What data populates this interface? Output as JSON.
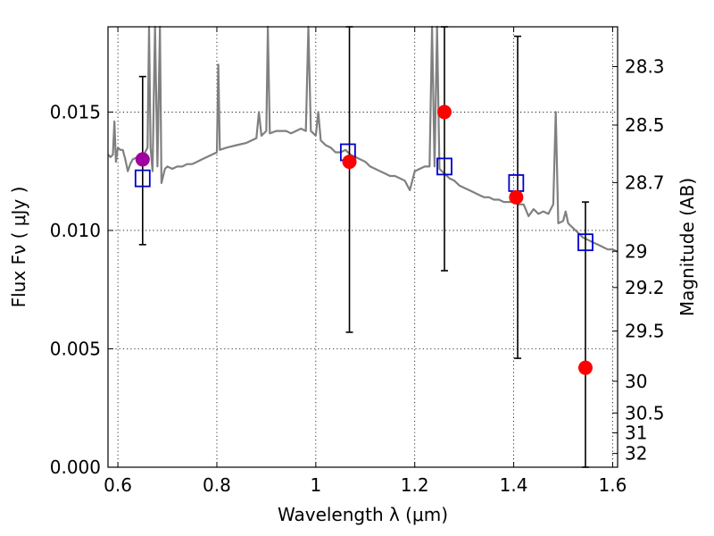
{
  "chart_data": {
    "type": "scatter",
    "title": "",
    "xlabel": "Wavelength  λ (μm)",
    "ylabel": "Flux  Fν  ( μJy )",
    "y2label": "Magnitude (AB)",
    "xlim": [
      0.58,
      1.61
    ],
    "ylim": [
      0.0,
      0.0186
    ],
    "grid": true,
    "x_ticks": [
      {
        "value": 0.6,
        "label": "0.6"
      },
      {
        "value": 0.8,
        "label": "0.8"
      },
      {
        "value": 1.0,
        "label": "1"
      },
      {
        "value": 1.2,
        "label": "1.2"
      },
      {
        "value": 1.4,
        "label": "1.4"
      },
      {
        "value": 1.6,
        "label": "1.6"
      }
    ],
    "y_ticks": [
      {
        "value": 0.0,
        "label": "0.000"
      },
      {
        "value": 0.005,
        "label": "0.005"
      },
      {
        "value": 0.01,
        "label": "0.010"
      },
      {
        "value": 0.015,
        "label": "0.015"
      }
    ],
    "y2_ticks": [
      {
        "label": "28.3",
        "flux": 0.01692
      },
      {
        "label": "28.5",
        "flux": 0.01445
      },
      {
        "label": "28.7",
        "flux": 0.01202
      },
      {
        "label": "29",
        "flux": 0.00912
      },
      {
        "label": "29.2",
        "flux": 0.00759
      },
      {
        "label": "29.5",
        "flux": 0.00575
      },
      {
        "label": "30",
        "flux": 0.00363
      },
      {
        "label": "30.5",
        "flux": 0.00229
      },
      {
        "label": "31",
        "flux": 0.00145
      },
      {
        "label": "32",
        "flux": 0.00058
      }
    ],
    "series": [
      {
        "marker": "spectrum-line",
        "color": "#808080",
        "points": [
          [
            0.58,
            0.0132
          ],
          [
            0.585,
            0.0131
          ],
          [
            0.59,
            0.0132
          ],
          [
            0.593,
            0.0146
          ],
          [
            0.596,
            0.0129
          ],
          [
            0.6,
            0.0135
          ],
          [
            0.605,
            0.0134
          ],
          [
            0.61,
            0.0134
          ],
          [
            0.615,
            0.013
          ],
          [
            0.62,
            0.0125
          ],
          [
            0.625,
            0.0128
          ],
          [
            0.63,
            0.013
          ],
          [
            0.64,
            0.0131
          ],
          [
            0.65,
            0.0131
          ],
          [
            0.66,
            0.0135
          ],
          [
            0.663,
            0.0186
          ],
          [
            0.666,
            0.0135
          ],
          [
            0.67,
            0.0125
          ],
          [
            0.675,
            0.0186
          ],
          [
            0.68,
            0.0127
          ],
          [
            0.685,
            0.0186
          ],
          [
            0.688,
            0.012
          ],
          [
            0.695,
            0.0126
          ],
          [
            0.7,
            0.0127
          ],
          [
            0.71,
            0.0126
          ],
          [
            0.72,
            0.0127
          ],
          [
            0.73,
            0.0127
          ],
          [
            0.74,
            0.0128
          ],
          [
            0.75,
            0.0128
          ],
          [
            0.76,
            0.0129
          ],
          [
            0.77,
            0.013
          ],
          [
            0.78,
            0.0131
          ],
          [
            0.79,
            0.0132
          ],
          [
            0.8,
            0.0133
          ],
          [
            0.803,
            0.017
          ],
          [
            0.806,
            0.0134
          ],
          [
            0.82,
            0.0135
          ],
          [
            0.84,
            0.0136
          ],
          [
            0.86,
            0.0137
          ],
          [
            0.87,
            0.0138
          ],
          [
            0.88,
            0.0139
          ],
          [
            0.885,
            0.015
          ],
          [
            0.89,
            0.014
          ],
          [
            0.9,
            0.0142
          ],
          [
            0.903,
            0.0186
          ],
          [
            0.907,
            0.0141
          ],
          [
            0.92,
            0.0142
          ],
          [
            0.94,
            0.0142
          ],
          [
            0.95,
            0.0141
          ],
          [
            0.96,
            0.0142
          ],
          [
            0.97,
            0.0143
          ],
          [
            0.98,
            0.0142
          ],
          [
            0.985,
            0.0186
          ],
          [
            0.99,
            0.0142
          ],
          [
            1.0,
            0.014
          ],
          [
            1.005,
            0.015
          ],
          [
            1.01,
            0.0138
          ],
          [
            1.02,
            0.0136
          ],
          [
            1.03,
            0.0135
          ],
          [
            1.04,
            0.0133
          ],
          [
            1.05,
            0.0133
          ],
          [
            1.06,
            0.0134
          ],
          [
            1.07,
            0.0132
          ],
          [
            1.08,
            0.0131
          ],
          [
            1.09,
            0.013
          ],
          [
            1.1,
            0.0129
          ],
          [
            1.11,
            0.0127
          ],
          [
            1.12,
            0.0126
          ],
          [
            1.13,
            0.0125
          ],
          [
            1.14,
            0.0124
          ],
          [
            1.15,
            0.0123
          ],
          [
            1.16,
            0.0123
          ],
          [
            1.17,
            0.0122
          ],
          [
            1.18,
            0.0121
          ],
          [
            1.19,
            0.0117
          ],
          [
            1.2,
            0.0125
          ],
          [
            1.21,
            0.0126
          ],
          [
            1.22,
            0.0127
          ],
          [
            1.23,
            0.0127
          ],
          [
            1.235,
            0.0186
          ],
          [
            1.24,
            0.0127
          ],
          [
            1.245,
            0.0186
          ],
          [
            1.25,
            0.0126
          ],
          [
            1.26,
            0.0124
          ],
          [
            1.27,
            0.0122
          ],
          [
            1.28,
            0.0121
          ],
          [
            1.29,
            0.0119
          ],
          [
            1.3,
            0.0118
          ],
          [
            1.31,
            0.0117
          ],
          [
            1.32,
            0.0116
          ],
          [
            1.33,
            0.0115
          ],
          [
            1.34,
            0.0114
          ],
          [
            1.35,
            0.0114
          ],
          [
            1.36,
            0.0113
          ],
          [
            1.37,
            0.0113
          ],
          [
            1.38,
            0.0112
          ],
          [
            1.39,
            0.0112
          ],
          [
            1.4,
            0.0112
          ],
          [
            1.41,
            0.0111
          ],
          [
            1.42,
            0.0111
          ],
          [
            1.43,
            0.0106
          ],
          [
            1.44,
            0.0109
          ],
          [
            1.45,
            0.0107
          ],
          [
            1.46,
            0.0108
          ],
          [
            1.47,
            0.0107
          ],
          [
            1.48,
            0.0111
          ],
          [
            1.485,
            0.015
          ],
          [
            1.49,
            0.0103
          ],
          [
            1.5,
            0.0104
          ],
          [
            1.505,
            0.0108
          ],
          [
            1.51,
            0.0103
          ],
          [
            1.52,
            0.0101
          ],
          [
            1.53,
            0.0099
          ],
          [
            1.54,
            0.0097
          ],
          [
            1.55,
            0.0096
          ],
          [
            1.56,
            0.0095
          ],
          [
            1.57,
            0.0094
          ],
          [
            1.58,
            0.0093
          ],
          [
            1.59,
            0.0092
          ],
          [
            1.6,
            0.0092
          ],
          [
            1.61,
            0.0091
          ]
        ]
      },
      {
        "marker": "open-square",
        "color": "#0000cc",
        "points": [
          [
            0.65,
            0.0122
          ],
          [
            1.065,
            0.0133
          ],
          [
            1.26,
            0.0127
          ],
          [
            1.405,
            0.012
          ],
          [
            1.545,
            0.0095
          ]
        ]
      },
      {
        "marker": "filled-circle",
        "color": "#ff0000",
        "points": [
          [
            1.068,
            0.0129
          ],
          [
            1.26,
            0.015
          ],
          [
            1.405,
            0.0114
          ],
          [
            1.545,
            0.0042
          ]
        ]
      },
      {
        "marker": "filled-circle",
        "color": "#a000a0",
        "points": [
          [
            0.65,
            0.013
          ]
        ]
      }
    ],
    "error_bars": [
      {
        "x": 0.65,
        "low": 0.0094,
        "high": 0.0165
      },
      {
        "x": 1.068,
        "low": 0.0057,
        "high": 0.0186
      },
      {
        "x": 1.26,
        "low": 0.0083,
        "high": 0.0186
      },
      {
        "x": 1.408,
        "low": 0.0046,
        "high": 0.0182
      },
      {
        "x": 1.545,
        "low": 0.0,
        "high": 0.0112
      }
    ]
  }
}
